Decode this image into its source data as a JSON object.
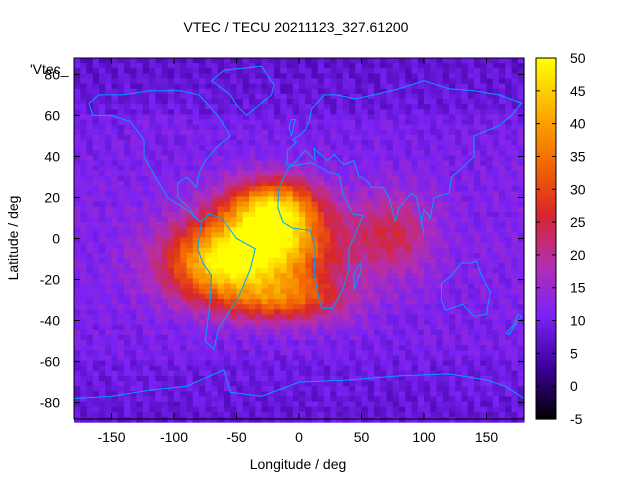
{
  "chart_data": {
    "type": "heatmap",
    "title": "VTEC / TECU 20211123_327.61200",
    "xlabel": "Longitude / deg",
    "ylabel": "Latitude / deg",
    "legend_key": "'Vtec_",
    "xlim": [
      -180,
      180
    ],
    "ylim": [
      -88,
      88
    ],
    "x_ticks": [
      -150,
      -100,
      -50,
      0,
      50,
      100,
      150
    ],
    "y_ticks": [
      -80,
      -60,
      -40,
      -20,
      0,
      20,
      40,
      60,
      80
    ],
    "colorbar": {
      "range": [
        -5,
        50
      ],
      "ticks": [
        -5,
        0,
        5,
        10,
        15,
        20,
        25,
        30,
        35,
        40,
        45,
        50
      ],
      "palette": [
        "#000000",
        "#3b0098",
        "#7a22f5",
        "#b42fb0",
        "#d8262a",
        "#f36b00",
        "#fbb200",
        "#ffff00"
      ]
    },
    "background_level": 10,
    "anomaly_peaks": [
      {
        "lon": -30,
        "lat": -5,
        "tec": 45,
        "sigma_lon": 40,
        "sigma_lat": 14
      },
      {
        "lon": -20,
        "lat": 15,
        "tec": 38,
        "sigma_lon": 25,
        "sigma_lat": 10
      },
      {
        "lon": -70,
        "lat": -15,
        "tec": 28,
        "sigma_lon": 30,
        "sigma_lat": 12
      },
      {
        "lon": 75,
        "lat": 2,
        "tec": 22,
        "sigma_lon": 22,
        "sigma_lat": 14
      },
      {
        "lon": -10,
        "lat": -30,
        "tec": 28,
        "sigma_lon": 35,
        "sigma_lat": 8
      }
    ],
    "coastline_color": "#00a0ff"
  }
}
